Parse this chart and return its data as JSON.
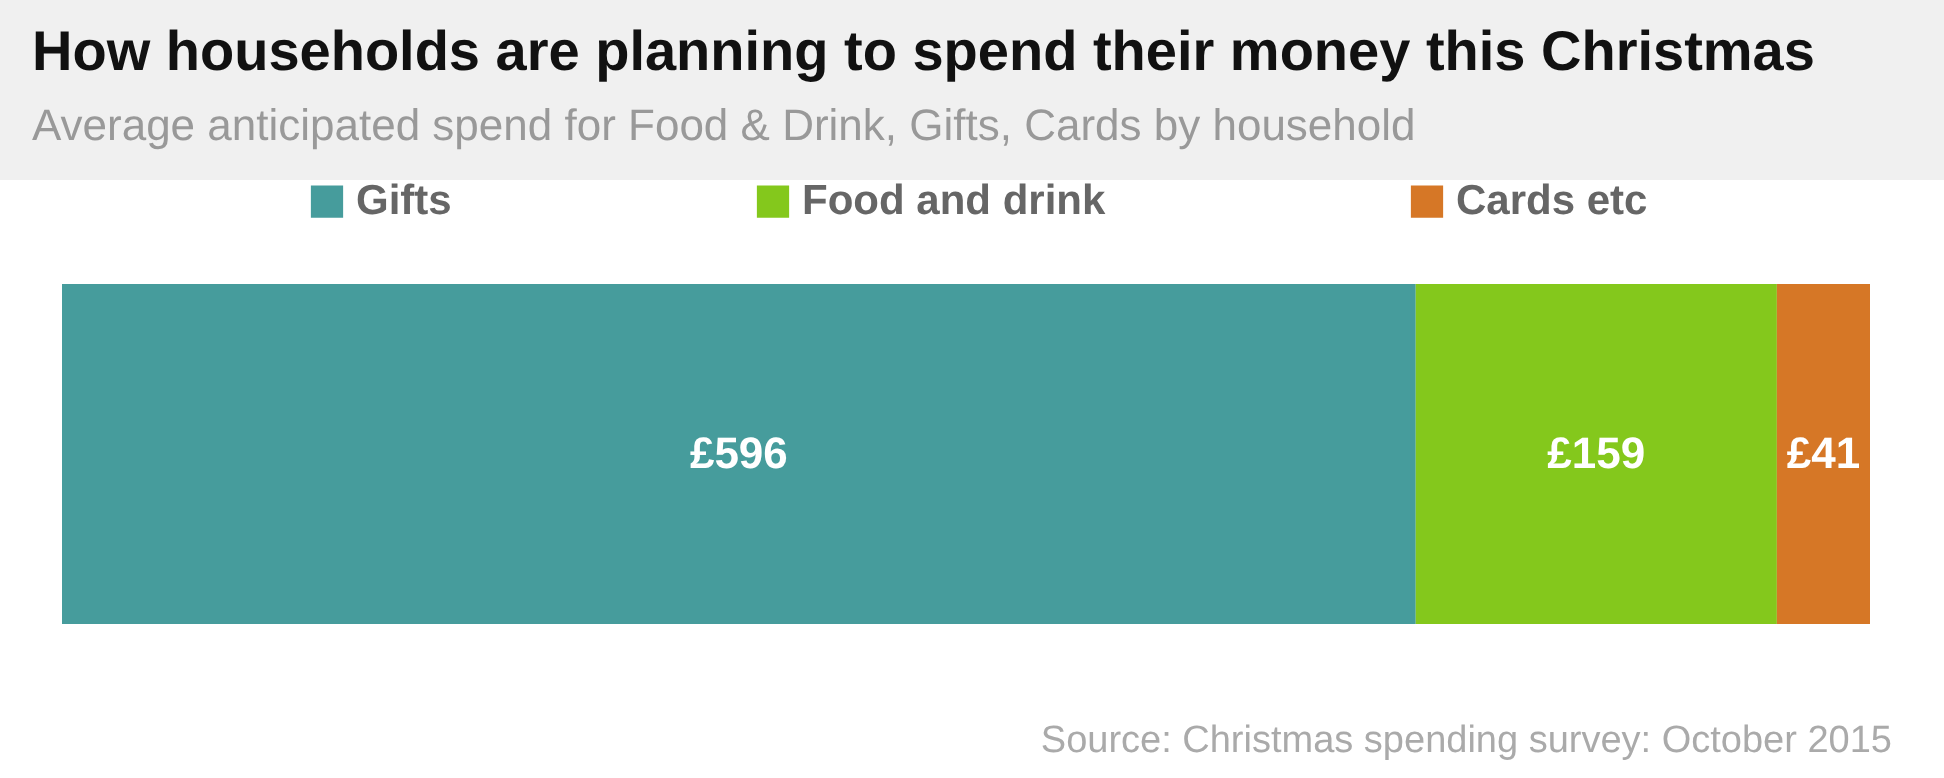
{
  "chart_data": {
    "type": "bar",
    "orientation": "horizontal",
    "stacked": true,
    "title": "How households are planning to spend their money this Christmas",
    "subtitle": "Average anticipated spend for Food & Drink, Gifts, Cards by household",
    "categories": [
      null
    ],
    "series": [
      {
        "name": "Gifts",
        "color": "#469c9c",
        "values": [
          596
        ],
        "value_labels": [
          "£596"
        ]
      },
      {
        "name": "Food and drink",
        "color": "#84c81c",
        "values": [
          159
        ],
        "value_labels": [
          "£159"
        ]
      },
      {
        "name": "Cards etc",
        "color": "#d67726",
        "values": [
          41
        ],
        "value_labels": [
          "£41"
        ]
      }
    ],
    "legend": "top",
    "tick_labels": false,
    "annotations": [
      "Source: Christmas spending survey: October 2015"
    ]
  }
}
